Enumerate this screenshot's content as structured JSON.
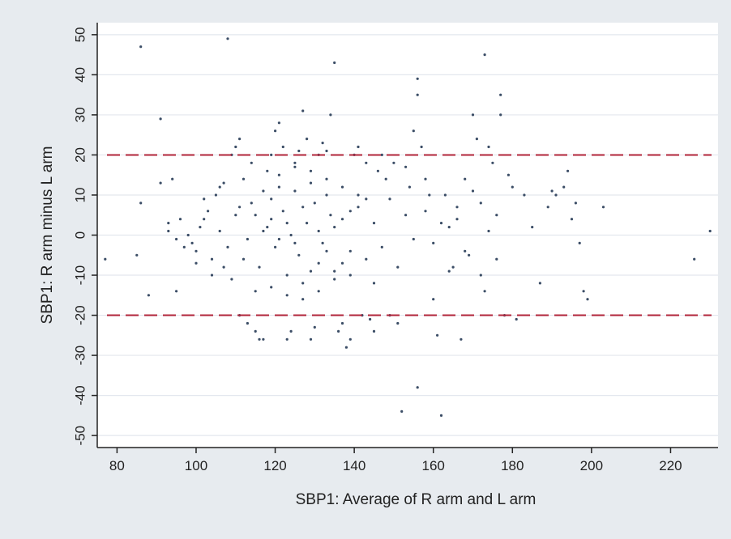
{
  "colors": {
    "outer_background": "#e7ebef",
    "plot_background": "#ffffff",
    "gridline": "#e3e7ee",
    "point": "#3b4d66",
    "reference_line": "#b0243a",
    "axis": "#222222"
  },
  "chart_data": {
    "type": "scatter",
    "title": "",
    "xlabel": "SBP1: Average of R arm and L arm",
    "ylabel": "SBP1: R arm minus L arm",
    "xlim": [
      75,
      232
    ],
    "ylim": [
      -53,
      53
    ],
    "x_ticks": [
      80,
      100,
      120,
      140,
      160,
      180,
      200,
      220
    ],
    "y_ticks": [
      50,
      40,
      30,
      20,
      10,
      0,
      -10,
      -20,
      -30,
      -40,
      -50
    ],
    "x_tick_labels": [
      "80",
      "100",
      "120",
      "140",
      "160",
      "180",
      "200",
      "220"
    ],
    "y_tick_labels": [
      "50",
      "40",
      "30",
      "20",
      "10",
      "0",
      "-10",
      "-20",
      "-30",
      "-40",
      "-50"
    ],
    "grid": "horizontal",
    "legend": "none",
    "reference_lines": [
      {
        "axis": "y",
        "value": 20,
        "style": "dashed"
      },
      {
        "axis": "y",
        "value": -20,
        "style": "dashed"
      }
    ],
    "series": [
      {
        "points": [
          [
            77,
            -6
          ],
          [
            86,
            47
          ],
          [
            86,
            8
          ],
          [
            85,
            -5
          ],
          [
            88,
            -15
          ],
          [
            91,
            29
          ],
          [
            91,
            13
          ],
          [
            93,
            3
          ],
          [
            93,
            1
          ],
          [
            95,
            -1
          ],
          [
            95,
            -14
          ],
          [
            94,
            14
          ],
          [
            96,
            4
          ],
          [
            97,
            -3
          ],
          [
            98,
            0
          ],
          [
            99,
            -2
          ],
          [
            100,
            -4
          ],
          [
            101,
            2
          ],
          [
            102,
            4
          ],
          [
            103,
            6
          ],
          [
            104,
            -6
          ],
          [
            105,
            10
          ],
          [
            106,
            12
          ],
          [
            107,
            -8
          ],
          [
            108,
            49
          ],
          [
            109,
            20
          ],
          [
            110,
            22
          ],
          [
            111,
            24
          ],
          [
            111,
            -20
          ],
          [
            112,
            14
          ],
          [
            113,
            -22
          ],
          [
            114,
            18
          ],
          [
            115,
            -24
          ],
          [
            116,
            -26
          ],
          [
            117,
            -26
          ],
          [
            118,
            16
          ],
          [
            119,
            20
          ],
          [
            120,
            26
          ],
          [
            121,
            28
          ],
          [
            122,
            22
          ],
          [
            123,
            -26
          ],
          [
            124,
            -24
          ],
          [
            125,
            18
          ],
          [
            126,
            21
          ],
          [
            127,
            31
          ],
          [
            128,
            24
          ],
          [
            129,
            -26
          ],
          [
            130,
            -23
          ],
          [
            131,
            20
          ],
          [
            132,
            23
          ],
          [
            133,
            21
          ],
          [
            134,
            30
          ],
          [
            135,
            43
          ],
          [
            136,
            -24
          ],
          [
            137,
            -22
          ],
          [
            138,
            -28
          ],
          [
            139,
            -26
          ],
          [
            140,
            20
          ],
          [
            141,
            22
          ],
          [
            142,
            -20
          ],
          [
            143,
            18
          ],
          [
            144,
            -21
          ],
          [
            145,
            -24
          ],
          [
            146,
            16
          ],
          [
            147,
            20
          ],
          [
            148,
            14
          ],
          [
            149,
            -20
          ],
          [
            150,
            18
          ],
          [
            151,
            -22
          ],
          [
            152,
            -44
          ],
          [
            153,
            17
          ],
          [
            154,
            12
          ],
          [
            155,
            26
          ],
          [
            156,
            39
          ],
          [
            156,
            35
          ],
          [
            156,
            -38
          ],
          [
            157,
            22
          ],
          [
            158,
            14
          ],
          [
            159,
            10
          ],
          [
            160,
            -16
          ],
          [
            161,
            -25
          ],
          [
            162,
            -45
          ],
          [
            163,
            10
          ],
          [
            164,
            2
          ],
          [
            165,
            -8
          ],
          [
            166,
            4
          ],
          [
            167,
            -26
          ],
          [
            168,
            14
          ],
          [
            169,
            -5
          ],
          [
            170,
            30
          ],
          [
            171,
            24
          ],
          [
            172,
            8
          ],
          [
            173,
            45
          ],
          [
            173,
            -14
          ],
          [
            174,
            22
          ],
          [
            175,
            18
          ],
          [
            176,
            5
          ],
          [
            177,
            35
          ],
          [
            177,
            30
          ],
          [
            178,
            -20
          ],
          [
            179,
            15
          ],
          [
            180,
            12
          ],
          [
            181,
            -21
          ],
          [
            183,
            10
          ],
          [
            185,
            2
          ],
          [
            187,
            -12
          ],
          [
            189,
            7
          ],
          [
            190,
            11
          ],
          [
            191,
            10
          ],
          [
            193,
            12
          ],
          [
            194,
            16
          ],
          [
            195,
            4
          ],
          [
            196,
            8
          ],
          [
            197,
            -2
          ],
          [
            198,
            -14
          ],
          [
            199,
            -16
          ],
          [
            203,
            7
          ],
          [
            226,
            -6
          ],
          [
            230,
            1
          ],
          [
            115,
            5
          ],
          [
            118,
            2
          ],
          [
            120,
            -3
          ],
          [
            122,
            6
          ],
          [
            124,
            0
          ],
          [
            126,
            -5
          ],
          [
            128,
            3
          ],
          [
            130,
            8
          ],
          [
            132,
            -2
          ],
          [
            134,
            5
          ],
          [
            116,
            -8
          ],
          [
            119,
            9
          ],
          [
            121,
            12
          ],
          [
            123,
            -10
          ],
          [
            125,
            11
          ],
          [
            127,
            -12
          ],
          [
            129,
            13
          ],
          [
            131,
            -7
          ],
          [
            133,
            10
          ],
          [
            135,
            -9
          ],
          [
            137,
            4
          ],
          [
            139,
            -4
          ],
          [
            141,
            7
          ],
          [
            143,
            -6
          ],
          [
            145,
            3
          ],
          [
            147,
            -3
          ],
          [
            149,
            9
          ],
          [
            151,
            -8
          ],
          [
            153,
            5
          ],
          [
            155,
            -1
          ],
          [
            106,
            1
          ],
          [
            108,
            -3
          ],
          [
            110,
            5
          ],
          [
            112,
            -6
          ],
          [
            114,
            8
          ],
          [
            117,
            11
          ],
          [
            119,
            -13
          ],
          [
            121,
            15
          ],
          [
            123,
            -15
          ],
          [
            125,
            17
          ],
          [
            127,
            -16
          ],
          [
            129,
            16
          ],
          [
            131,
            -14
          ],
          [
            133,
            14
          ],
          [
            135,
            -11
          ],
          [
            137,
            12
          ],
          [
            139,
            -10
          ],
          [
            141,
            10
          ],
          [
            143,
            9
          ],
          [
            145,
            -12
          ],
          [
            100,
            -7
          ],
          [
            102,
            9
          ],
          [
            104,
            -10
          ],
          [
            107,
            13
          ],
          [
            109,
            -11
          ],
          [
            111,
            7
          ],
          [
            113,
            -1
          ],
          [
            115,
            -14
          ],
          [
            117,
            1
          ],
          [
            119,
            4
          ],
          [
            121,
            -1
          ],
          [
            123,
            3
          ],
          [
            125,
            -2
          ],
          [
            127,
            7
          ],
          [
            129,
            -9
          ],
          [
            131,
            1
          ],
          [
            133,
            -4
          ],
          [
            135,
            2
          ],
          [
            137,
            -7
          ],
          [
            139,
            6
          ],
          [
            158,
            6
          ],
          [
            160,
            -2
          ],
          [
            162,
            3
          ],
          [
            164,
            -9
          ],
          [
            166,
            7
          ],
          [
            168,
            -4
          ],
          [
            170,
            11
          ],
          [
            172,
            -10
          ],
          [
            174,
            1
          ],
          [
            176,
            -6
          ]
        ]
      }
    ]
  }
}
